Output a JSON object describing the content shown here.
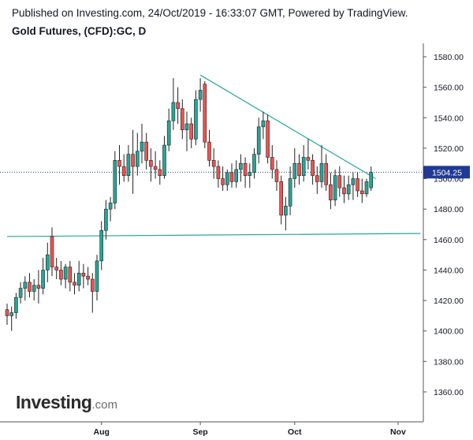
{
  "header": {
    "published": "Published on Investing.com, 24/Oct/2019 - 16:33:07 GMT, Powered by TradingView.",
    "title": "Gold Futures, (CFD):GC, D"
  },
  "logo": {
    "main": "Investing",
    "sub": ".com"
  },
  "colors": {
    "up": "#26a69a",
    "down": "#ef5350",
    "trendline": "#26a69a",
    "price_line": "#1e3a8a",
    "price_label_bg": "#1f3a93"
  },
  "chart_data": {
    "type": "candlestick",
    "title": "Gold Futures, (CFD):GC, D",
    "ylim": [
      1342,
      1592
    ],
    "y_ticks": [
      1360,
      1380,
      1400,
      1420,
      1440,
      1460,
      1480,
      1500,
      1520,
      1540,
      1560,
      1580
    ],
    "y_tick_labels": [
      "1360.00",
      "1380.00",
      "1400.00",
      "1420.00",
      "1440.00",
      "1460.00",
      "1480.00",
      "1500.00",
      "1520.00",
      "1540.00",
      "1560.00",
      "1580.00"
    ],
    "x_ticks": [
      {
        "label": "Aug",
        "index": 21
      },
      {
        "label": "Sep",
        "index": 43
      },
      {
        "label": "Oct",
        "index": 64
      },
      {
        "label": "Nov",
        "index": 87
      }
    ],
    "current_price": 1504.25,
    "current_price_label": "1504.25",
    "candles": [
      [
        1414,
        1418,
        1404,
        1410
      ],
      [
        1410,
        1416,
        1400,
        1412
      ],
      [
        1412,
        1425,
        1408,
        1422
      ],
      [
        1422,
        1432,
        1418,
        1428
      ],
      [
        1428,
        1436,
        1420,
        1432
      ],
      [
        1432,
        1438,
        1422,
        1426
      ],
      [
        1426,
        1434,
        1420,
        1430
      ],
      [
        1430,
        1440,
        1418,
        1428
      ],
      [
        1428,
        1448,
        1424,
        1440
      ],
      [
        1440,
        1458,
        1432,
        1450
      ],
      [
        1462,
        1468,
        1436,
        1442
      ],
      [
        1442,
        1448,
        1434,
        1440
      ],
      [
        1440,
        1446,
        1430,
        1434
      ],
      [
        1434,
        1444,
        1428,
        1442
      ],
      [
        1442,
        1446,
        1426,
        1432
      ],
      [
        1432,
        1438,
        1424,
        1430
      ],
      [
        1430,
        1446,
        1426,
        1438
      ],
      [
        1438,
        1444,
        1428,
        1436
      ],
      [
        1436,
        1442,
        1430,
        1434
      ],
      [
        1434,
        1438,
        1412,
        1426
      ],
      [
        1426,
        1450,
        1420,
        1446
      ],
      [
        1446,
        1472,
        1440,
        1466
      ],
      [
        1466,
        1486,
        1460,
        1480
      ],
      [
        1480,
        1488,
        1472,
        1484
      ],
      [
        1484,
        1518,
        1480,
        1512
      ],
      [
        1512,
        1522,
        1496,
        1508
      ],
      [
        1508,
        1516,
        1498,
        1502
      ],
      [
        1502,
        1522,
        1498,
        1516
      ],
      [
        1516,
        1532,
        1490,
        1508
      ],
      [
        1508,
        1530,
        1502,
        1518
      ],
      [
        1518,
        1536,
        1510,
        1524
      ],
      [
        1524,
        1530,
        1506,
        1512
      ],
      [
        1512,
        1520,
        1498,
        1508
      ],
      [
        1508,
        1518,
        1500,
        1506
      ],
      [
        1506,
        1512,
        1496,
        1502
      ],
      [
        1502,
        1528,
        1500,
        1522
      ],
      [
        1522,
        1546,
        1518,
        1538
      ],
      [
        1538,
        1566,
        1532,
        1550
      ],
      [
        1550,
        1560,
        1536,
        1546
      ],
      [
        1546,
        1552,
        1526,
        1532
      ],
      [
        1532,
        1544,
        1518,
        1536
      ],
      [
        1536,
        1540,
        1520,
        1526
      ],
      [
        1526,
        1558,
        1522,
        1552
      ],
      [
        1552,
        1566,
        1544,
        1558
      ],
      [
        1562,
        1564,
        1520,
        1524
      ],
      [
        1524,
        1532,
        1508,
        1512
      ],
      [
        1512,
        1520,
        1500,
        1508
      ],
      [
        1508,
        1512,
        1494,
        1500
      ],
      [
        1500,
        1508,
        1492,
        1496
      ],
      [
        1496,
        1506,
        1492,
        1504
      ],
      [
        1504,
        1510,
        1494,
        1498
      ],
      [
        1498,
        1512,
        1494,
        1506
      ],
      [
        1506,
        1516,
        1498,
        1510
      ],
      [
        1510,
        1514,
        1494,
        1502
      ],
      [
        1502,
        1510,
        1494,
        1504
      ],
      [
        1504,
        1520,
        1500,
        1516
      ],
      [
        1516,
        1540,
        1510,
        1534
      ],
      [
        1534,
        1544,
        1526,
        1538
      ],
      [
        1538,
        1542,
        1510,
        1514
      ],
      [
        1514,
        1522,
        1500,
        1506
      ],
      [
        1506,
        1512,
        1492,
        1498
      ],
      [
        1498,
        1502,
        1470,
        1476
      ],
      [
        1476,
        1488,
        1466,
        1482
      ],
      [
        1482,
        1508,
        1476,
        1500
      ],
      [
        1500,
        1520,
        1494,
        1510
      ],
      [
        1510,
        1516,
        1496,
        1502
      ],
      [
        1502,
        1522,
        1498,
        1514
      ],
      [
        1514,
        1526,
        1506,
        1512
      ],
      [
        1512,
        1516,
        1496,
        1502
      ],
      [
        1502,
        1508,
        1490,
        1498
      ],
      [
        1498,
        1522,
        1494,
        1510
      ],
      [
        1510,
        1516,
        1492,
        1496
      ],
      [
        1496,
        1504,
        1480,
        1486
      ],
      [
        1486,
        1506,
        1482,
        1502
      ],
      [
        1502,
        1508,
        1488,
        1494
      ],
      [
        1494,
        1502,
        1484,
        1490
      ],
      [
        1490,
        1502,
        1486,
        1496
      ],
      [
        1496,
        1504,
        1486,
        1500
      ],
      [
        1500,
        1504,
        1488,
        1492
      ],
      [
        1492,
        1500,
        1484,
        1490
      ],
      [
        1490,
        1500,
        1488,
        1498
      ],
      [
        1494,
        1508,
        1492,
        1504
      ]
    ],
    "trendlines": [
      {
        "from": [
          43,
          1568
        ],
        "to": [
          82,
          1500
        ]
      },
      {
        "from": [
          0,
          1462
        ],
        "to": [
          92,
          1464
        ]
      }
    ]
  }
}
